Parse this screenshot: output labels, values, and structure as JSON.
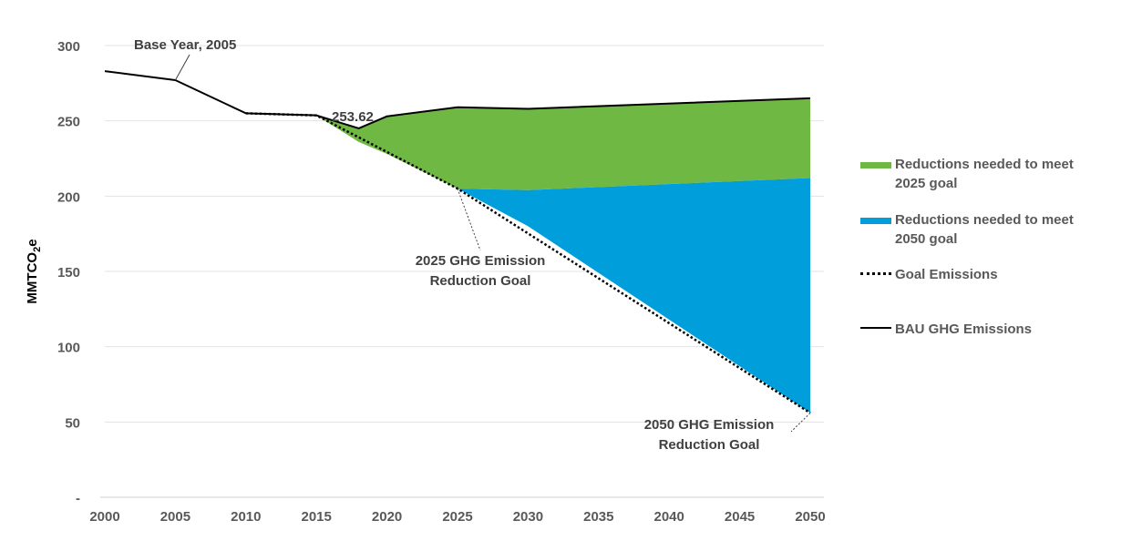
{
  "chart_data": {
    "type": "area",
    "ylabel": "MMTCO2e",
    "ylabel_main": "MMTCO",
    "ylabel_sub": "2",
    "ylabel_tail": "e",
    "x_ticks": [
      "2000",
      "2005",
      "2010",
      "2015",
      "2020",
      "2025",
      "2030",
      "2035",
      "2040",
      "2045",
      "2050"
    ],
    "y_ticks": [
      "-",
      "50",
      "100",
      "150",
      "200",
      "250",
      "300"
    ],
    "y_tick_values": [
      0,
      50,
      100,
      150,
      200,
      250,
      300
    ],
    "ylim": [
      0,
      300
    ],
    "xlim": [
      2000,
      2050
    ],
    "grid": true,
    "legend_position": "right",
    "series": [
      {
        "name": "Reductions needed to meet 2025 goal",
        "kind": "area",
        "color": "#70B844",
        "x": [
          2015,
          2018,
          2020,
          2025,
          2030,
          2050
        ],
        "upper": [
          253.62,
          245,
          253,
          259,
          258,
          265
        ],
        "lower": [
          253.62,
          236,
          228,
          205,
          204,
          212
        ]
      },
      {
        "name": "Reductions needed to meet 2050 goal",
        "kind": "area",
        "color": "#009FDB",
        "x": [
          2025,
          2030,
          2050
        ],
        "upper": [
          205,
          204,
          212
        ],
        "lower": [
          205,
          180,
          56
        ]
      },
      {
        "name": "Goal Emissions",
        "kind": "dotted-line",
        "color": "#000000",
        "x": [
          2010,
          2015,
          2025,
          2050
        ],
        "y": [
          255,
          253.62,
          205,
          56
        ]
      },
      {
        "name": "BAU GHG Emissions",
        "kind": "line",
        "color": "#000000",
        "x": [
          2000,
          2005,
          2010,
          2015,
          2018,
          2020,
          2025,
          2030,
          2050
        ],
        "y": [
          283,
          277,
          255,
          253.62,
          245,
          253,
          259,
          258,
          265
        ]
      }
    ],
    "annotations": [
      {
        "text": "Base Year, 2005",
        "x": 2005,
        "y": 277
      },
      {
        "text": "253.62",
        "x": 2015,
        "y": 253.62
      },
      {
        "text": "2025 GHG Emission Reduction Goal",
        "lines": [
          "2025 GHG Emission",
          "Reduction Goal"
        ],
        "x": 2025,
        "y": 205
      },
      {
        "text": "2050 GHG Emission Reduction Goal",
        "lines": [
          "2050 GHG Emission",
          "Reduction Goal"
        ],
        "x": 2050,
        "y": 56
      }
    ]
  },
  "legend": {
    "items": [
      {
        "lines": [
          "Reductions needed to meet",
          "2025 goal"
        ],
        "key": "box",
        "color": "#70B844"
      },
      {
        "lines": [
          "Reductions needed to meet",
          "2050 goal"
        ],
        "key": "box",
        "color": "#009FDB"
      },
      {
        "lines": [
          "Goal Emissions"
        ],
        "key": "dotted",
        "color": "#000000"
      },
      {
        "lines": [
          "BAU GHG Emissions"
        ],
        "key": "solid",
        "color": "#000000"
      }
    ]
  }
}
